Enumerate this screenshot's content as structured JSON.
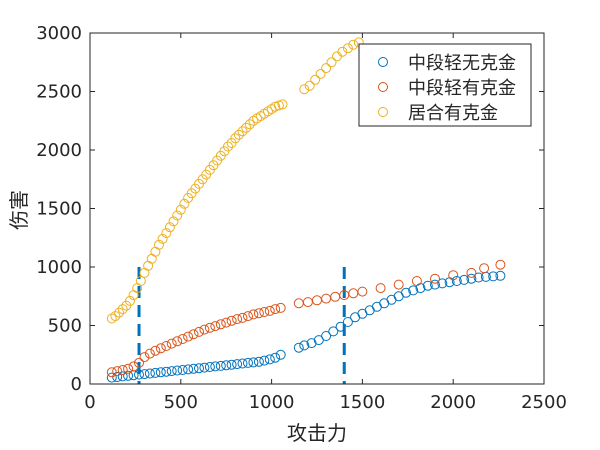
{
  "chart_data": {
    "type": "scatter",
    "xlabel": "攻击力",
    "ylabel": "伤害",
    "xlim": [
      0,
      2500
    ],
    "ylim": [
      0,
      3000
    ],
    "xticks": [
      0,
      500,
      1000,
      1500,
      2000,
      2500
    ],
    "yticks": [
      0,
      500,
      1000,
      1500,
      2000,
      2500,
      3000
    ],
    "grid": false,
    "legend_position": "top-right",
    "colors": {
      "series1": "#0072BD",
      "series2": "#D95319",
      "series3": "#EDB120",
      "vline": "#0072BD"
    },
    "vlines": [
      {
        "x": 270,
        "y0": 0,
        "y1": 1000
      },
      {
        "x": 1400,
        "y0": 0,
        "y1": 1000
      }
    ],
    "series": [
      {
        "name": "中段轻无克金",
        "color": "#0072BD",
        "points": [
          [
            120,
            55
          ],
          [
            150,
            60
          ],
          [
            180,
            65
          ],
          [
            210,
            70
          ],
          [
            240,
            75
          ],
          [
            270,
            80
          ],
          [
            300,
            85
          ],
          [
            330,
            90
          ],
          [
            360,
            95
          ],
          [
            390,
            100
          ],
          [
            420,
            105
          ],
          [
            450,
            110
          ],
          [
            480,
            115
          ],
          [
            510,
            120
          ],
          [
            540,
            125
          ],
          [
            570,
            130
          ],
          [
            600,
            135
          ],
          [
            630,
            140
          ],
          [
            660,
            145
          ],
          [
            690,
            150
          ],
          [
            720,
            155
          ],
          [
            750,
            160
          ],
          [
            780,
            165
          ],
          [
            810,
            170
          ],
          [
            840,
            175
          ],
          [
            870,
            180
          ],
          [
            900,
            185
          ],
          [
            930,
            190
          ],
          [
            960,
            200
          ],
          [
            990,
            210
          ],
          [
            1020,
            225
          ],
          [
            1050,
            250
          ],
          [
            1150,
            310
          ],
          [
            1180,
            330
          ],
          [
            1220,
            350
          ],
          [
            1260,
            375
          ],
          [
            1300,
            410
          ],
          [
            1340,
            450
          ],
          [
            1380,
            490
          ],
          [
            1420,
            530
          ],
          [
            1460,
            570
          ],
          [
            1500,
            600
          ],
          [
            1540,
            630
          ],
          [
            1580,
            660
          ],
          [
            1620,
            690
          ],
          [
            1660,
            720
          ],
          [
            1700,
            750
          ],
          [
            1740,
            780
          ],
          [
            1780,
            800
          ],
          [
            1820,
            820
          ],
          [
            1860,
            840
          ],
          [
            1900,
            850
          ],
          [
            1940,
            860
          ],
          [
            1980,
            870
          ],
          [
            2020,
            880
          ],
          [
            2060,
            890
          ],
          [
            2100,
            900
          ],
          [
            2140,
            910
          ],
          [
            2180,
            915
          ],
          [
            2220,
            920
          ],
          [
            2260,
            925
          ]
        ]
      },
      {
        "name": "中段轻有克金",
        "color": "#D95319",
        "points": [
          [
            120,
            100
          ],
          [
            150,
            110
          ],
          [
            180,
            120
          ],
          [
            210,
            130
          ],
          [
            240,
            150
          ],
          [
            270,
            180
          ],
          [
            300,
            230
          ],
          [
            330,
            260
          ],
          [
            360,
            285
          ],
          [
            390,
            305
          ],
          [
            420,
            325
          ],
          [
            450,
            345
          ],
          [
            480,
            365
          ],
          [
            510,
            385
          ],
          [
            540,
            405
          ],
          [
            570,
            425
          ],
          [
            600,
            445
          ],
          [
            630,
            465
          ],
          [
            660,
            480
          ],
          [
            690,
            495
          ],
          [
            720,
            510
          ],
          [
            750,
            525
          ],
          [
            780,
            540
          ],
          [
            810,
            555
          ],
          [
            840,
            565
          ],
          [
            870,
            580
          ],
          [
            900,
            595
          ],
          [
            930,
            605
          ],
          [
            960,
            615
          ],
          [
            990,
            625
          ],
          [
            1020,
            640
          ],
          [
            1050,
            650
          ],
          [
            1150,
            690
          ],
          [
            1200,
            700
          ],
          [
            1250,
            715
          ],
          [
            1300,
            730
          ],
          [
            1350,
            745
          ],
          [
            1400,
            760
          ],
          [
            1450,
            775
          ],
          [
            1500,
            790
          ],
          [
            1600,
            820
          ],
          [
            1700,
            850
          ],
          [
            1800,
            880
          ],
          [
            1900,
            900
          ],
          [
            2000,
            930
          ],
          [
            2100,
            950
          ],
          [
            2170,
            990
          ],
          [
            2260,
            1020
          ]
        ]
      },
      {
        "name": "居合有克金",
        "color": "#EDB120",
        "points": [
          [
            120,
            560
          ],
          [
            140,
            580
          ],
          [
            160,
            610
          ],
          [
            180,
            640
          ],
          [
            200,
            670
          ],
          [
            220,
            710
          ],
          [
            240,
            760
          ],
          [
            260,
            820
          ],
          [
            280,
            880
          ],
          [
            300,
            950
          ],
          [
            320,
            1010
          ],
          [
            340,
            1070
          ],
          [
            360,
            1130
          ],
          [
            380,
            1190
          ],
          [
            400,
            1240
          ],
          [
            420,
            1290
          ],
          [
            440,
            1340
          ],
          [
            460,
            1390
          ],
          [
            480,
            1440
          ],
          [
            500,
            1490
          ],
          [
            520,
            1540
          ],
          [
            540,
            1590
          ],
          [
            560,
            1630
          ],
          [
            580,
            1670
          ],
          [
            600,
            1710
          ],
          [
            620,
            1750
          ],
          [
            640,
            1790
          ],
          [
            660,
            1830
          ],
          [
            680,
            1870
          ],
          [
            700,
            1910
          ],
          [
            720,
            1950
          ],
          [
            740,
            1990
          ],
          [
            760,
            2030
          ],
          [
            780,
            2060
          ],
          [
            800,
            2100
          ],
          [
            820,
            2130
          ],
          [
            840,
            2160
          ],
          [
            860,
            2190
          ],
          [
            880,
            2220
          ],
          [
            900,
            2250
          ],
          [
            920,
            2270
          ],
          [
            940,
            2290
          ],
          [
            960,
            2310
          ],
          [
            980,
            2330
          ],
          [
            1000,
            2350
          ],
          [
            1020,
            2370
          ],
          [
            1040,
            2380
          ],
          [
            1060,
            2390
          ],
          [
            1180,
            2520
          ],
          [
            1210,
            2550
          ],
          [
            1240,
            2600
          ],
          [
            1270,
            2650
          ],
          [
            1300,
            2700
          ],
          [
            1330,
            2750
          ],
          [
            1360,
            2800
          ],
          [
            1390,
            2840
          ],
          [
            1420,
            2870
          ],
          [
            1450,
            2900
          ],
          [
            1480,
            2920
          ]
        ]
      }
    ]
  }
}
